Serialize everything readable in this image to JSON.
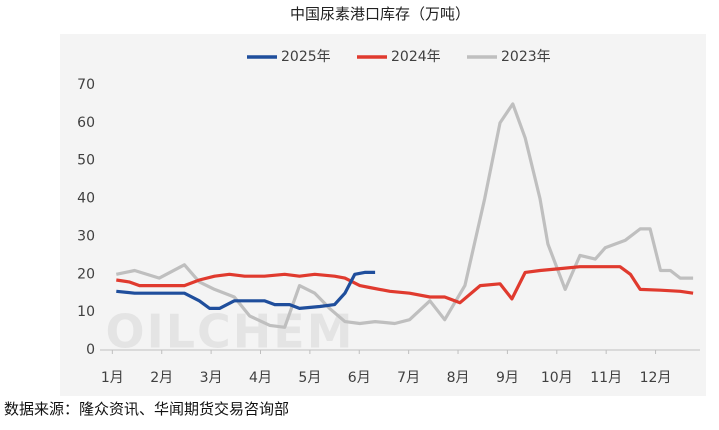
{
  "chart_data": {
    "type": "line",
    "title": "中国尿素港口库存（万吨）",
    "source": "数据来源：隆众资讯、华闻期货交易咨询部",
    "watermark": "OILCHEM",
    "xlim": [
      0.75,
      12.9
    ],
    "xticks": [
      {
        "value": 1,
        "label": "1月"
      },
      {
        "value": 2,
        "label": "2月"
      },
      {
        "value": 3,
        "label": "3月"
      },
      {
        "value": 4,
        "label": "4月"
      },
      {
        "value": 5,
        "label": "5月"
      },
      {
        "value": 6,
        "label": "6月"
      },
      {
        "value": 7,
        "label": "7月"
      },
      {
        "value": 8,
        "label": "8月"
      },
      {
        "value": 9,
        "label": "9月"
      },
      {
        "value": 10,
        "label": "10月"
      },
      {
        "value": 11,
        "label": "11月"
      },
      {
        "value": 12,
        "label": "12月"
      }
    ],
    "ylim": [
      0,
      70
    ],
    "yticks": [
      0,
      10,
      20,
      30,
      40,
      50,
      60,
      70
    ],
    "grid": false,
    "legend": "top",
    "series": [
      {
        "name": "2025年",
        "color": "#1f4e9c",
        "x": [
          1.08,
          1.45,
          1.95,
          2.46,
          2.76,
          2.97,
          3.17,
          3.47,
          3.78,
          4.08,
          4.29,
          4.59,
          4.79,
          5.2,
          5.5,
          5.71,
          5.91,
          6.11,
          6.32
        ],
        "values": [
          15.5,
          15,
          15,
          15,
          13,
          11,
          11,
          13,
          13,
          13,
          12,
          12,
          11,
          11.5,
          12,
          15,
          20,
          20.5,
          20.5
        ]
      },
      {
        "name": "2024年",
        "color": "#e03a2e",
        "x": [
          1.08,
          1.34,
          1.55,
          2.05,
          2.46,
          2.76,
          3.07,
          3.37,
          3.68,
          4.08,
          4.49,
          4.79,
          5.1,
          5.5,
          5.71,
          6.01,
          6.21,
          6.62,
          7.02,
          7.43,
          7.73,
          8.04,
          8.45,
          8.85,
          9.09,
          9.36,
          9.66,
          10.07,
          10.47,
          10.88,
          11.28,
          11.49,
          11.69,
          12.1,
          12.5,
          12.76
        ],
        "values": [
          18.5,
          18,
          17,
          17,
          17,
          18.5,
          19.5,
          20,
          19.5,
          19.5,
          20,
          19.5,
          20,
          19.5,
          19,
          17,
          16.5,
          15.5,
          15,
          14,
          14,
          12.5,
          17,
          17.5,
          13.5,
          20.5,
          21,
          21.5,
          22,
          22,
          22,
          20,
          16,
          15.8,
          15.5,
          15
        ]
      },
      {
        "name": "2023年",
        "color": "#bfbfbf",
        "x": [
          1.08,
          1.45,
          1.95,
          2.46,
          2.76,
          3.07,
          3.47,
          3.78,
          4.19,
          4.49,
          4.79,
          5.1,
          5.4,
          5.71,
          6.01,
          6.32,
          6.72,
          7.02,
          7.43,
          7.73,
          8.14,
          8.54,
          8.85,
          9.11,
          9.36,
          9.66,
          9.82,
          10.17,
          10.47,
          10.78,
          10.98,
          11.39,
          11.69,
          11.89,
          12.1,
          12.3,
          12.5,
          12.76
        ],
        "values": [
          20,
          21,
          19,
          22.5,
          18,
          16,
          14,
          9,
          6.5,
          6,
          17,
          15,
          11,
          7.5,
          7,
          7.5,
          7,
          8,
          13,
          8,
          17,
          40,
          60,
          65,
          56,
          40,
          28,
          16,
          25,
          24,
          27,
          29,
          32,
          32,
          21,
          21,
          19,
          19
        ]
      }
    ]
  }
}
